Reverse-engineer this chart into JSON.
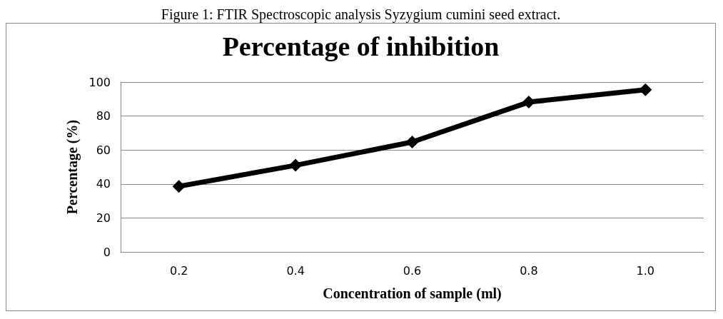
{
  "chart_data": {
    "type": "line",
    "title": "Percentage of inhibition",
    "xlabel": "Concentration of sample (ml)",
    "ylabel": "Percentage (%)",
    "annotations": [
      "Figure 1: FTIR Spectroscopic analysis Syzygium cumini seed extract."
    ],
    "categories": [
      "0.2",
      "0.4",
      "0.6",
      "0.8",
      "1.0"
    ],
    "series": [
      {
        "color": "#000000",
        "values": [
          38.6,
          51,
          64.7,
          88.2,
          95.5
        ]
      }
    ],
    "ylim": [
      0,
      100
    ],
    "yticks": [
      0,
      20,
      40,
      60,
      80,
      100
    ],
    "grid": "y",
    "marker": "diamond",
    "line_style": "solid"
  }
}
